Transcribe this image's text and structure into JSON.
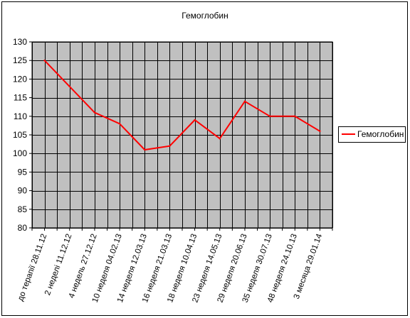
{
  "chart_data": {
    "type": "line",
    "title": "Гемоглобин",
    "categories": [
      "до терапії 28.11.12",
      "2 неделі 11.12.12",
      "4 недель 27.12.12",
      "10 неделя 04.02.13",
      "14 неделя 12.03.13",
      "16 неделя 21.03.13",
      "18 неделя 10.04.13",
      "23 неделя 14.05.13",
      "29 неделя 20.06.13",
      "35 неделя 30.07.13",
      "48 неделя 24.10.13",
      "3 месяца 29.01.14"
    ],
    "x_slots": 24,
    "series": [
      {
        "name": "Гемоглобин",
        "color": "#ff0000",
        "values": [
          125,
          118,
          111,
          108,
          101,
          102,
          109,
          104,
          114,
          110,
          110,
          106
        ]
      }
    ],
    "ylim": [
      80,
      130
    ],
    "yticks": [
      80,
      85,
      90,
      95,
      100,
      105,
      110,
      115,
      120,
      125,
      130
    ],
    "grid": true,
    "plot_background": "#c0c0c0",
    "legend_position": "right"
  }
}
